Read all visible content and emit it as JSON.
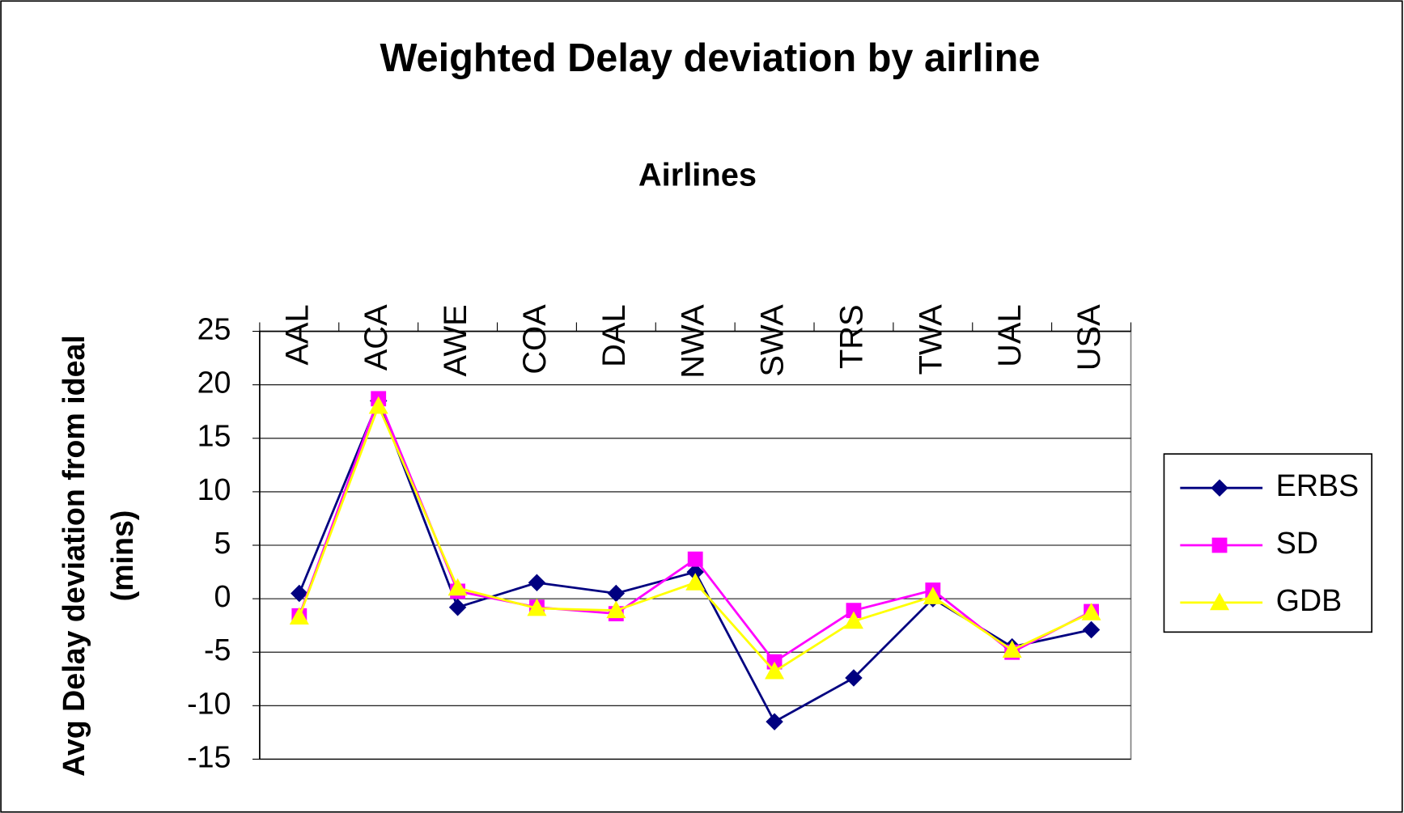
{
  "chart_data": {
    "type": "line",
    "title": "Weighted Delay deviation by airline",
    "x_label": "Airlines",
    "y_label": "Avg Delay deviation from ideal (mins)",
    "categories": [
      "AAL",
      "ACA",
      "AWE",
      "COA",
      "DAL",
      "NWA",
      "SWA",
      "TRS",
      "TWA",
      "UAL",
      "USA"
    ],
    "series": [
      {
        "name": "ERBS",
        "color": "#000080",
        "marker": "diamond",
        "values": [
          0.5,
          18.5,
          -0.8,
          1.5,
          0.5,
          2.5,
          -11.5,
          -7.4,
          0,
          -4.5,
          -2.9
        ]
      },
      {
        "name": "SD",
        "color": "#ff00ff",
        "marker": "square",
        "values": [
          -1.6,
          18.7,
          0.7,
          -0.8,
          -1.4,
          3.7,
          -5.9,
          -1.1,
          0.8,
          -5,
          -1.2
        ]
      },
      {
        "name": "GDB",
        "color": "#ffff00",
        "marker": "triangle",
        "values": [
          -1.7,
          18,
          1,
          -0.9,
          -1.1,
          1.5,
          -6.8,
          -2.1,
          0.2,
          -4.8,
          -1.3
        ]
      }
    ],
    "ylim": [
      -15,
      25
    ],
    "yticks": [
      -15,
      -10,
      -5,
      0,
      5,
      10,
      15,
      20,
      25
    ],
    "grid": true,
    "legend": "right"
  }
}
